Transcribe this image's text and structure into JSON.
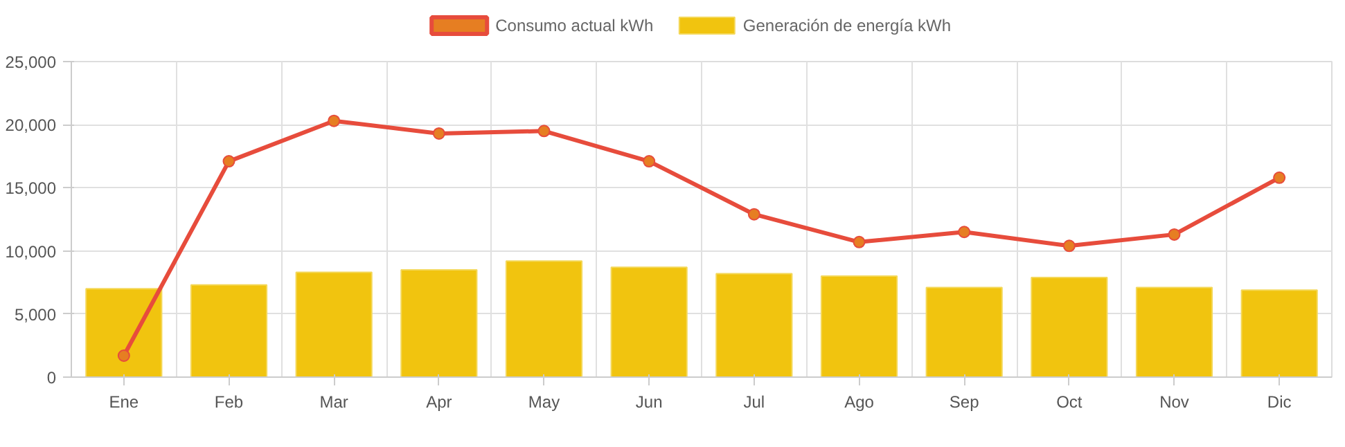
{
  "chart_data": {
    "type": "bar",
    "categories": [
      "Ene",
      "Feb",
      "Mar",
      "Apr",
      "May",
      "Jun",
      "Jul",
      "Ago",
      "Sep",
      "Oct",
      "Nov",
      "Dic"
    ],
    "series": [
      {
        "name": "Consumo actual kWh",
        "type": "line",
        "color": "#e74c3c",
        "marker": "circle",
        "values": [
          1700,
          17100,
          20300,
          19300,
          19500,
          17100,
          12900,
          10700,
          11500,
          10400,
          11300,
          15800
        ]
      },
      {
        "name": "Generación de energía kWh",
        "color": "#f1c40f",
        "values": [
          7000,
          7300,
          8300,
          8500,
          9200,
          8700,
          8200,
          8000,
          7100,
          7900,
          7100,
          6900
        ]
      }
    ],
    "ylim": [
      0,
      25000
    ],
    "yticks": [
      0,
      {
        "value": 5000,
        "label": "5,000"
      },
      {
        "value": 10000,
        "label": "10,000"
      },
      {
        "value": 15000,
        "label": "15,000"
      },
      {
        "value": 20000,
        "label": "20,000"
      },
      {
        "value": 25000,
        "label": "25,000"
      }
    ],
    "grid": true,
    "legend": "top"
  }
}
